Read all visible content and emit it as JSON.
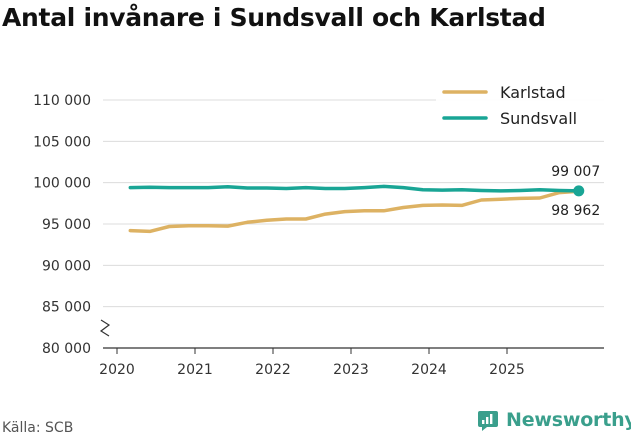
{
  "chart_data": {
    "type": "line",
    "title": "Antal invånare i Sundsvall och Karlstad",
    "xlabel": "",
    "ylabel": "",
    "ylim": [
      80000,
      110000
    ],
    "xlim": [
      2020,
      2026.2
    ],
    "y_ticks": [
      80000,
      85000,
      90000,
      95000,
      100000,
      105000,
      110000
    ],
    "y_tick_labels": [
      "80 000",
      "85 000",
      "90 000",
      "95 000",
      "100 000",
      "105 000",
      "110 000"
    ],
    "x_ticks": [
      2020,
      2021,
      2022,
      2023,
      2024,
      2025
    ],
    "x_tick_labels": [
      "2020",
      "2021",
      "2022",
      "2023",
      "2024",
      "2025"
    ],
    "grid": "horizontal",
    "axis_break": true,
    "legend_position": "top-right",
    "series": [
      {
        "name": "Karlstad",
        "color": "#ddb263",
        "x": [
          2020.17,
          2020.42,
          2020.67,
          2020.92,
          2021.17,
          2021.42,
          2021.67,
          2021.92,
          2022.17,
          2022.42,
          2022.67,
          2022.92,
          2023.17,
          2023.42,
          2023.67,
          2023.92,
          2024.17,
          2024.42,
          2024.67,
          2024.92,
          2025.17,
          2025.42,
          2025.67,
          2025.92
        ],
        "values": [
          94200,
          94100,
          94700,
          94800,
          94800,
          94750,
          95200,
          95450,
          95600,
          95600,
          96200,
          96500,
          96600,
          96600,
          97000,
          97250,
          97300,
          97250,
          97900,
          98000,
          98100,
          98150,
          98800,
          98962
        ]
      },
      {
        "name": "Sundsvall",
        "color": "#19a595",
        "x": [
          2020.17,
          2020.42,
          2020.67,
          2020.92,
          2021.17,
          2021.42,
          2021.67,
          2021.92,
          2022.17,
          2022.42,
          2022.67,
          2022.92,
          2023.17,
          2023.42,
          2023.67,
          2023.92,
          2024.17,
          2024.42,
          2024.67,
          2024.92,
          2025.17,
          2025.42,
          2025.67,
          2025.92
        ],
        "values": [
          99400,
          99450,
          99400,
          99400,
          99400,
          99500,
          99350,
          99350,
          99300,
          99400,
          99300,
          99300,
          99400,
          99550,
          99400,
          99150,
          99100,
          99150,
          99050,
          99000,
          99050,
          99150,
          99050,
          99007
        ]
      }
    ],
    "annotations": [
      {
        "series": "Sundsvall",
        "label": "99 007",
        "position": "above"
      },
      {
        "series": "Karlstad",
        "label": "98 962",
        "position": "below"
      }
    ]
  },
  "footer": {
    "source": "Källa: SCB",
    "brand": "Newsworthy",
    "brand_color": "#3a9f8c"
  }
}
